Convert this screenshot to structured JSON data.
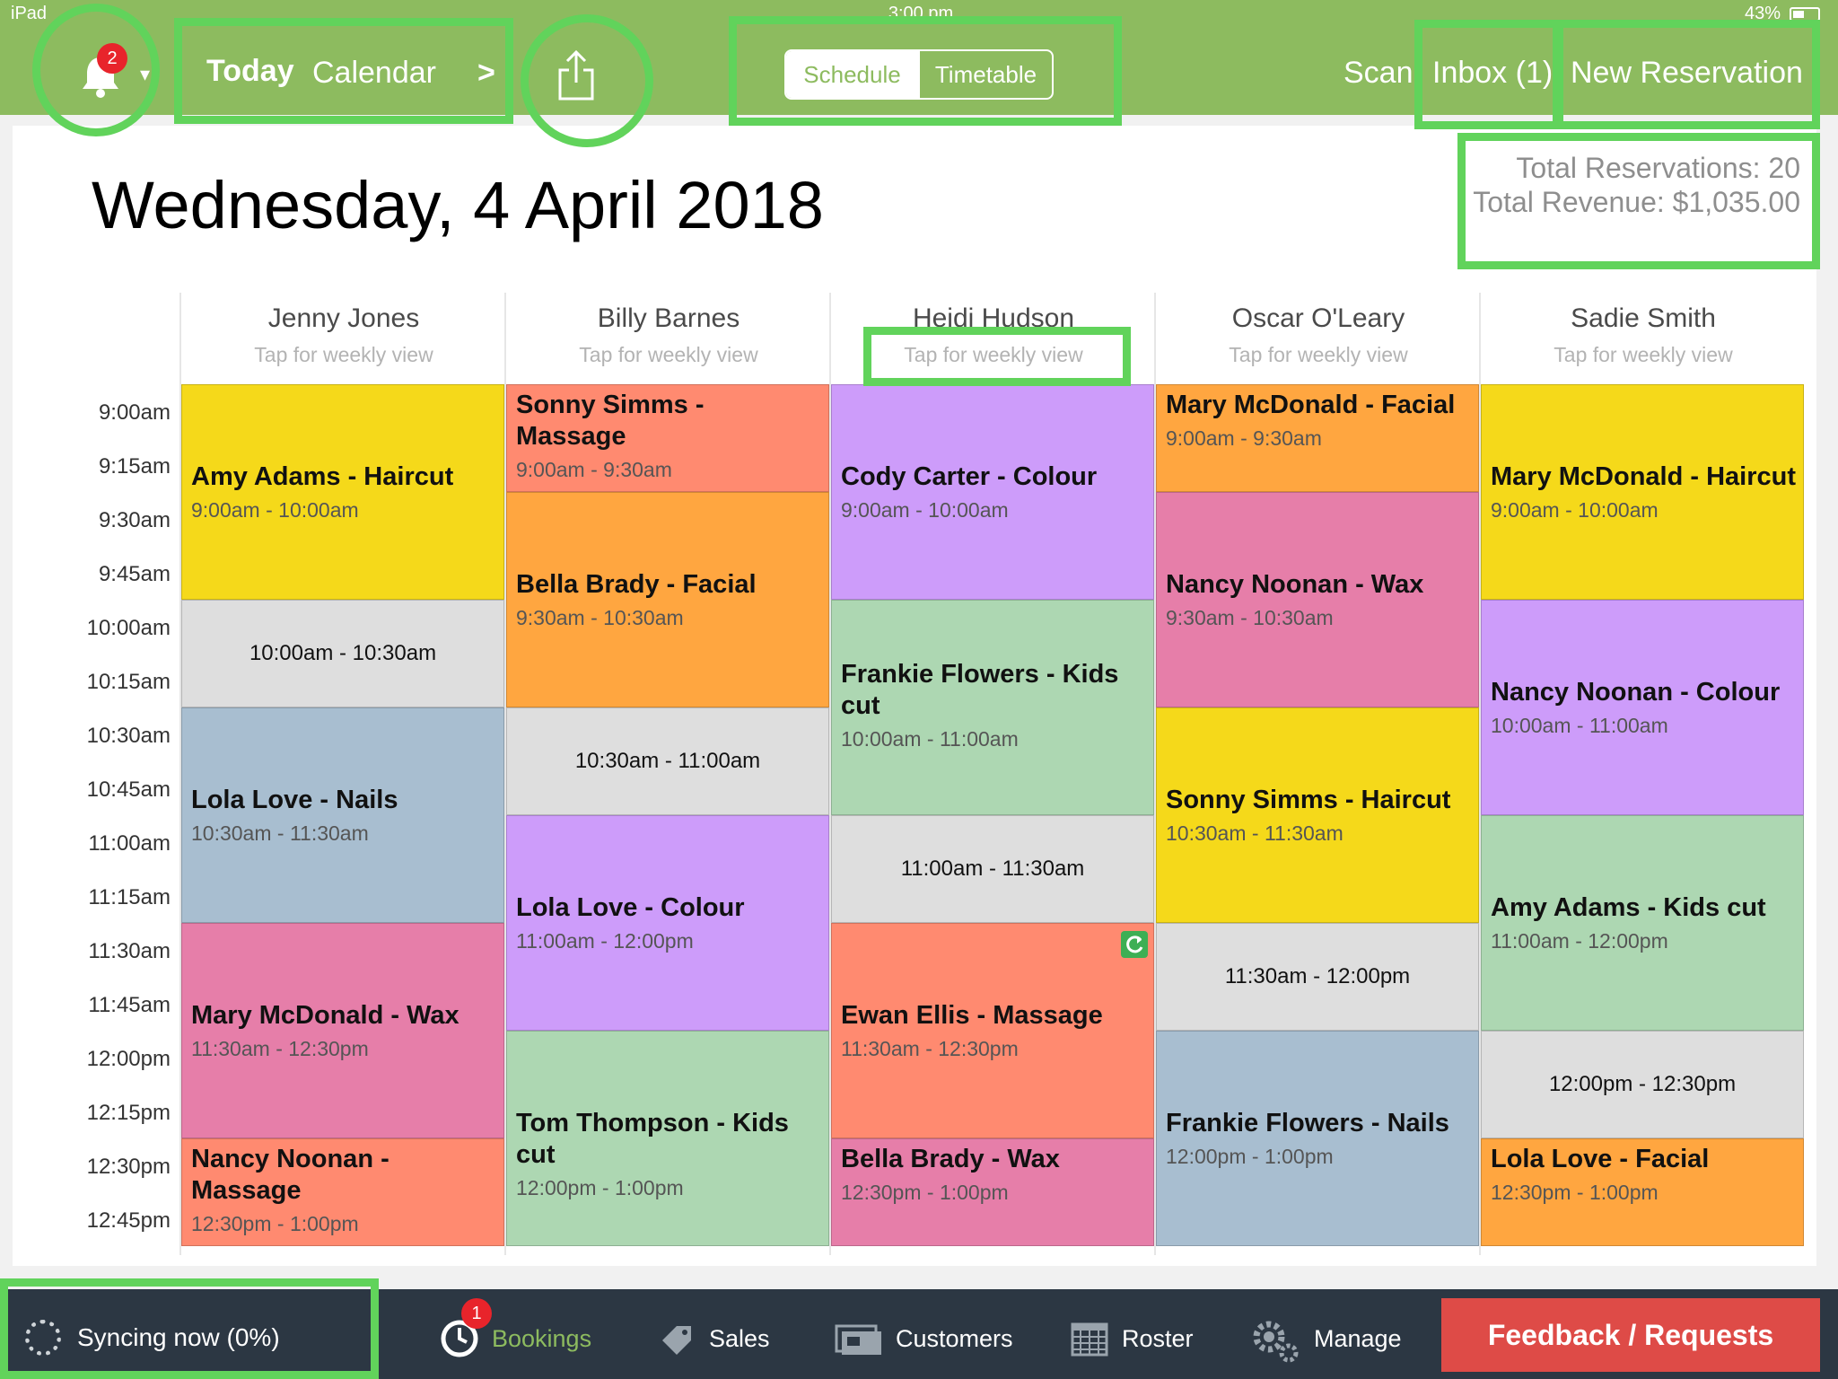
{
  "status_bar": {
    "device": "iPad",
    "time": "3:00 pm",
    "battery": "43%"
  },
  "header": {
    "notification_count": "2",
    "today_label": "Today",
    "calendar_label": "Calendar",
    "chevron": ">",
    "segments": [
      {
        "label": "Schedule",
        "active": true
      },
      {
        "label": "Timetable",
        "active": false
      }
    ],
    "scan_label": "Scan",
    "inbox_label": "Inbox (1)",
    "new_reservation_label": "New Reservation"
  },
  "date_title": "Wednesday, 4 April 2018",
  "totals": {
    "reservations": "Total Reservations: 20",
    "revenue": "Total Revenue: $1,035.00"
  },
  "staff": [
    {
      "name": "Jenny Jones",
      "sub": "Tap for weekly view"
    },
    {
      "name": "Billy Barnes",
      "sub": "Tap for weekly view"
    },
    {
      "name": "Heidi Hudson",
      "sub": "Tap for weekly view"
    },
    {
      "name": "Oscar O'Leary",
      "sub": "Tap for weekly view"
    },
    {
      "name": "Sadie Smith",
      "sub": "Tap for weekly view"
    }
  ],
  "times": [
    "9:00am",
    "9:15am",
    "9:30am",
    "9:45am",
    "10:00am",
    "10:15am",
    "10:30am",
    "10:45am",
    "11:00am",
    "11:15am",
    "11:30am",
    "11:45am",
    "12:00pm",
    "12:15pm",
    "12:30pm",
    "12:45pm"
  ],
  "schedule": [
    [
      {
        "type": "booking",
        "title": "Amy Adams - Haircut",
        "time": "9:00am - 10:00am",
        "color": "#f5d91a",
        "start": 0,
        "dur": 4
      },
      {
        "type": "free",
        "time": "10:00am - 10:30am",
        "start": 4,
        "dur": 2
      },
      {
        "type": "booking",
        "title": "Lola Love - Nails",
        "time": "10:30am - 11:30am",
        "color": "#a8bed0",
        "start": 6,
        "dur": 4
      },
      {
        "type": "booking",
        "title": "Mary McDonald - Wax",
        "time": "11:30am - 12:30pm",
        "color": "#e67ea9",
        "start": 10,
        "dur": 4
      },
      {
        "type": "booking",
        "title": "Nancy Noonan - Massage",
        "time": "12:30pm - 1:00pm",
        "color": "#ff8a70",
        "start": 14,
        "dur": 2
      }
    ],
    [
      {
        "type": "booking",
        "title": "Sonny Simms - Massage",
        "time": "9:00am - 9:30am",
        "color": "#ff8a70",
        "start": 0,
        "dur": 2
      },
      {
        "type": "booking",
        "title": "Bella Brady - Facial",
        "time": "9:30am - 10:30am",
        "color": "#ffa640",
        "start": 2,
        "dur": 4
      },
      {
        "type": "free",
        "time": "10:30am - 11:00am",
        "start": 6,
        "dur": 2
      },
      {
        "type": "booking",
        "title": "Lola Love - Colour",
        "time": "11:00am - 12:00pm",
        "color": "#cd9cfa",
        "start": 8,
        "dur": 4
      },
      {
        "type": "booking",
        "title": "Tom Thompson - Kids cut",
        "time": "12:00pm - 1:00pm",
        "color": "#add7b2",
        "start": 12,
        "dur": 4
      }
    ],
    [
      {
        "type": "booking",
        "title": "Cody  Carter - Colour",
        "time": "9:00am - 10:00am",
        "color": "#cd9cfa",
        "start": 0,
        "dur": 4
      },
      {
        "type": "booking",
        "title": "Frankie Flowers - Kids cut",
        "time": "10:00am - 11:00am",
        "color": "#add7b2",
        "start": 4,
        "dur": 4
      },
      {
        "type": "free",
        "time": "11:00am - 11:30am",
        "start": 8,
        "dur": 2
      },
      {
        "type": "booking",
        "title": "Ewan Ellis - Massage",
        "time": "11:30am - 12:30pm",
        "color": "#ff8a70",
        "start": 10,
        "dur": 4,
        "repeat": true
      },
      {
        "type": "booking",
        "title": "Bella Brady - Wax",
        "time": "12:30pm - 1:00pm",
        "color": "#e67ea9",
        "start": 14,
        "dur": 2
      }
    ],
    [
      {
        "type": "booking",
        "title": "Mary McDonald - Facial",
        "time": "9:00am - 9:30am",
        "color": "#ffa640",
        "start": 0,
        "dur": 2
      },
      {
        "type": "booking",
        "title": "Nancy Noonan - Wax",
        "time": "9:30am - 10:30am",
        "color": "#e67ea9",
        "start": 2,
        "dur": 4
      },
      {
        "type": "booking",
        "title": "Sonny Simms - Haircut",
        "time": "10:30am - 11:30am",
        "color": "#f5d91a",
        "start": 6,
        "dur": 4
      },
      {
        "type": "free",
        "time": "11:30am - 12:00pm",
        "start": 10,
        "dur": 2
      },
      {
        "type": "booking",
        "title": "Frankie Flowers - Nails",
        "time": "12:00pm - 1:00pm",
        "color": "#a8bed0",
        "start": 12,
        "dur": 4
      }
    ],
    [
      {
        "type": "booking",
        "title": "Mary McDonald - Haircut",
        "time": "9:00am - 10:00am",
        "color": "#f5d91a",
        "start": 0,
        "dur": 4
      },
      {
        "type": "booking",
        "title": "Nancy Noonan - Colour",
        "time": "10:00am - 11:00am",
        "color": "#cd9cfa",
        "start": 4,
        "dur": 4
      },
      {
        "type": "booking",
        "title": "Amy Adams - Kids cut",
        "time": "11:00am - 12:00pm",
        "color": "#add7b2",
        "start": 8,
        "dur": 4
      },
      {
        "type": "free",
        "time": "12:00pm - 12:30pm",
        "start": 12,
        "dur": 2
      },
      {
        "type": "booking",
        "title": "Lola Love - Facial",
        "time": "12:30pm - 1:00pm",
        "color": "#ffa640",
        "start": 14,
        "dur": 2
      }
    ]
  ],
  "tabbar": {
    "sync_label": "Syncing now (0%)",
    "bookings_badge": "1",
    "tabs": [
      {
        "label": "Bookings",
        "icon": "clock-icon"
      },
      {
        "label": "Sales",
        "icon": "price-tag-icon"
      },
      {
        "label": "Customers",
        "icon": "id-cards-icon"
      },
      {
        "label": "Roster",
        "icon": "calendar-grid-icon"
      },
      {
        "label": "Manage",
        "icon": "gears-icon"
      }
    ],
    "feedback_label": "Feedback / Requests"
  },
  "colors": {
    "brand_green": "#8dbb5f",
    "tabbar_bg": "#2c3743",
    "badge_red": "#e8242b",
    "feedback_red": "#de4b47",
    "highlight": "#61d35b"
  }
}
